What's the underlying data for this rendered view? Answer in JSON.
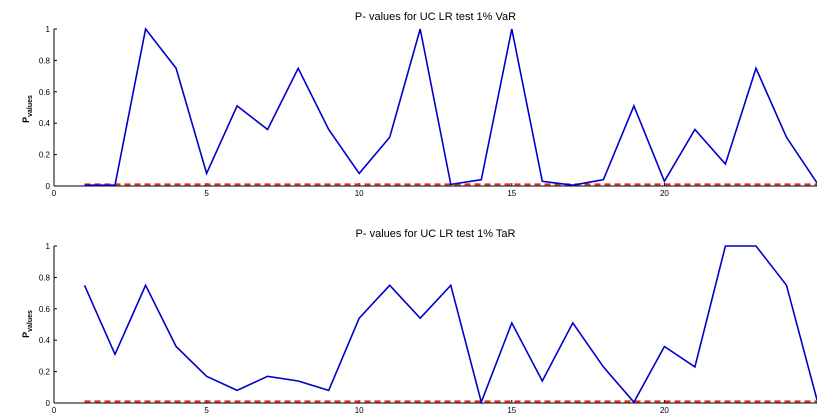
{
  "chart_data": [
    {
      "type": "line",
      "title": "P- values for UC LR test 1% VaR",
      "ylabel_main": "P",
      "ylabel_sub": "values",
      "xlim": [
        0,
        25
      ],
      "ylim": [
        0,
        1
      ],
      "xticks": [
        "0",
        "5",
        "10",
        "15",
        "20",
        "25"
      ],
      "yticks": [
        "0",
        "0.2",
        "0.4",
        "0.6",
        "0.8",
        "1"
      ],
      "x": [
        1,
        2,
        3,
        4,
        5,
        6,
        7,
        8,
        9,
        10,
        11,
        12,
        13,
        14,
        15,
        16,
        17,
        18,
        19,
        20,
        21,
        22,
        23,
        24,
        25
      ],
      "series": [
        {
          "color": "#0000cc",
          "style": "solid",
          "values": [
            0.005,
            0.005,
            1.0,
            0.75,
            0.08,
            0.51,
            0.36,
            0.75,
            0.36,
            0.08,
            0.31,
            1.0,
            0.01,
            0.04,
            1.0,
            0.03,
            0.005,
            0.04,
            0.51,
            0.03,
            0.36,
            0.14,
            0.75,
            0.31,
            0.02
          ]
        },
        {
          "color": "#e8291c",
          "style": "dashed",
          "values": [
            0.01,
            0.01,
            0.01,
            0.01,
            0.01,
            0.01,
            0.01,
            0.01,
            0.01,
            0.01,
            0.01,
            0.01,
            0.01,
            0.01,
            0.01,
            0.01,
            0.01,
            0.01,
            0.01,
            0.01,
            0.01,
            0.01,
            0.01,
            0.01,
            0.01
          ]
        }
      ]
    },
    {
      "type": "line",
      "title": "P- values for UC LR test 1% TaR",
      "ylabel_main": "P",
      "ylabel_sub": "values",
      "xlim": [
        0,
        25
      ],
      "ylim": [
        0,
        1
      ],
      "xticks": [
        "0",
        "5",
        "10",
        "15",
        "20",
        "25"
      ],
      "yticks": [
        "0",
        "0.2",
        "0.4",
        "0.6",
        "0.8",
        "1"
      ],
      "x": [
        1,
        2,
        3,
        4,
        5,
        6,
        7,
        8,
        9,
        10,
        11,
        12,
        13,
        14,
        15,
        16,
        17,
        18,
        19,
        20,
        21,
        22,
        23,
        24,
        25
      ],
      "series": [
        {
          "color": "#0000cc",
          "style": "solid",
          "values": [
            0.75,
            0.31,
            0.75,
            0.36,
            0.17,
            0.08,
            0.17,
            0.14,
            0.08,
            0.54,
            0.75,
            0.54,
            0.75,
            0.005,
            0.51,
            0.14,
            0.51,
            0.23,
            0.005,
            0.36,
            0.23,
            1.0,
            1.0,
            0.75,
            0.02
          ]
        },
        {
          "color": "#e8291c",
          "style": "dashed",
          "values": [
            0.01,
            0.01,
            0.01,
            0.01,
            0.01,
            0.01,
            0.01,
            0.01,
            0.01,
            0.01,
            0.01,
            0.01,
            0.01,
            0.01,
            0.01,
            0.01,
            0.01,
            0.01,
            0.01,
            0.01,
            0.01,
            0.01,
            0.01,
            0.01,
            0.01
          ]
        }
      ]
    }
  ]
}
